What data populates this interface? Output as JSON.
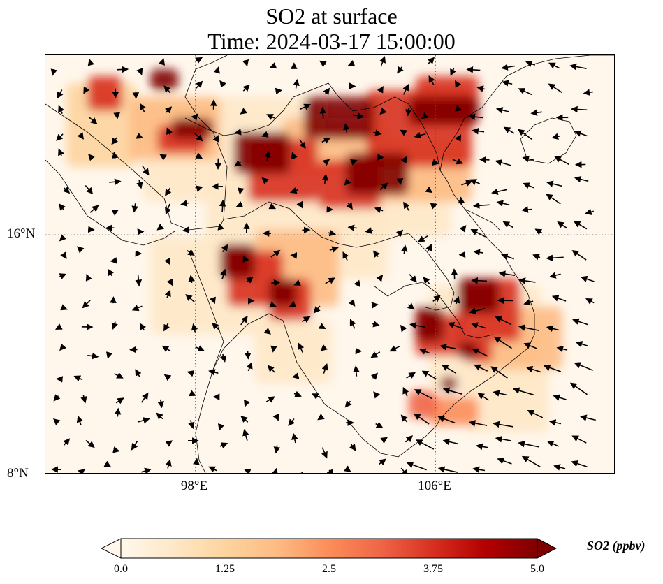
{
  "title": {
    "line1": "SO2 at surface",
    "line2": "Time: 2024-03-17 15:00:00"
  },
  "map": {
    "variable": "SO2",
    "lat_range": [
      8,
      22
    ],
    "lon_range": [
      93,
      112
    ],
    "lat_ticks": [
      {
        "value": 16,
        "label": "16°N"
      },
      {
        "value": 8,
        "label": "8°N"
      }
    ],
    "lon_ticks": [
      {
        "value": 98,
        "label": "98°E"
      },
      {
        "value": 106,
        "label": "106°E"
      }
    ],
    "gridlines": "dotted",
    "overlays": [
      "coastlines",
      "country-borders",
      "wind-vectors"
    ]
  },
  "colorbar": {
    "label": "SO2 (ppbv)",
    "cmap": "OrRd",
    "colors": [
      "#fff7ec",
      "#fee8c8",
      "#fdd49e",
      "#fdbb84",
      "#fc8d59",
      "#ef6548",
      "#d7301f",
      "#b30000",
      "#7f0000"
    ],
    "min": 0.0,
    "max": 5.0,
    "extend": "both",
    "ticks": [
      "0.0",
      "1.25",
      "2.5",
      "3.75",
      "5.0"
    ]
  }
}
